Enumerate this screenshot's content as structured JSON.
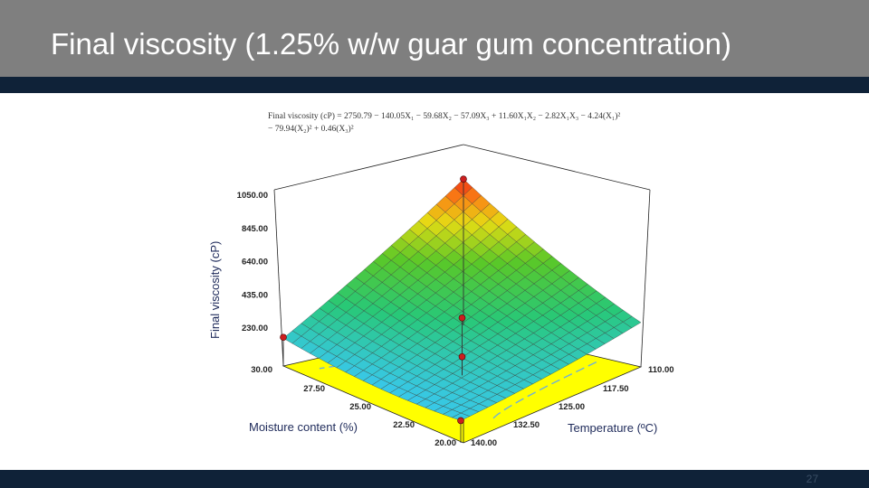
{
  "slide": {
    "title": "Final viscosity (1.25% w/w guar gum concentration)",
    "slide_number": "27"
  },
  "colors": {
    "title_bar": "#7f7f7f",
    "accent_strip": "#0f2238",
    "contour_plane": "#ffff00",
    "design_point": "#cc1f1f"
  },
  "chart_data": {
    "type": "surface",
    "equation_line1": "Final viscosity (cP) = 2750.79 − 140.05X₁ − 59.68X₂ − 57.09X₃ + 11.60X₁X₂ − 2.82X₁X₃ − 4.24(X₁)²",
    "equation_line2": "− 79.94(X₂)² + 0.46(X₃)²",
    "zlabel": "Final viscosity (cP)",
    "xlabel": "Temperature (ºC)",
    "ylabel": "Moisture content (%)",
    "z_ticks": [
      "230.00",
      "435.00",
      "640.00",
      "845.00",
      "1050.00"
    ],
    "x_ticks": [
      "110.00",
      "117.50",
      "125.00",
      "132.50",
      "140.00"
    ],
    "y_ticks": [
      "20.00",
      "22.50",
      "25.00",
      "27.50",
      "30.00"
    ],
    "zlim": [
      230,
      1050
    ],
    "xlim": [
      110,
      140
    ],
    "ylim": [
      20,
      30
    ],
    "surface_corners": [
      {
        "temperature": 110,
        "moisture": 20,
        "viscosity": 1020
      },
      {
        "temperature": 140,
        "moisture": 20,
        "viscosity": 470
      },
      {
        "temperature": 110,
        "moisture": 30,
        "viscosity": 380
      },
      {
        "temperature": 140,
        "moisture": 30,
        "viscosity": 350
      }
    ],
    "design_points": [
      {
        "temperature": 110,
        "moisture": 20,
        "viscosity": 1020
      },
      {
        "temperature": 125,
        "moisture": 25,
        "viscosity": 540
      },
      {
        "temperature": 125,
        "moisture": 25,
        "viscosity": 330
      },
      {
        "temperature": 110,
        "moisture": 30,
        "viscosity": 385
      },
      {
        "temperature": 140,
        "moisture": 30,
        "viscosity": 350
      }
    ]
  }
}
